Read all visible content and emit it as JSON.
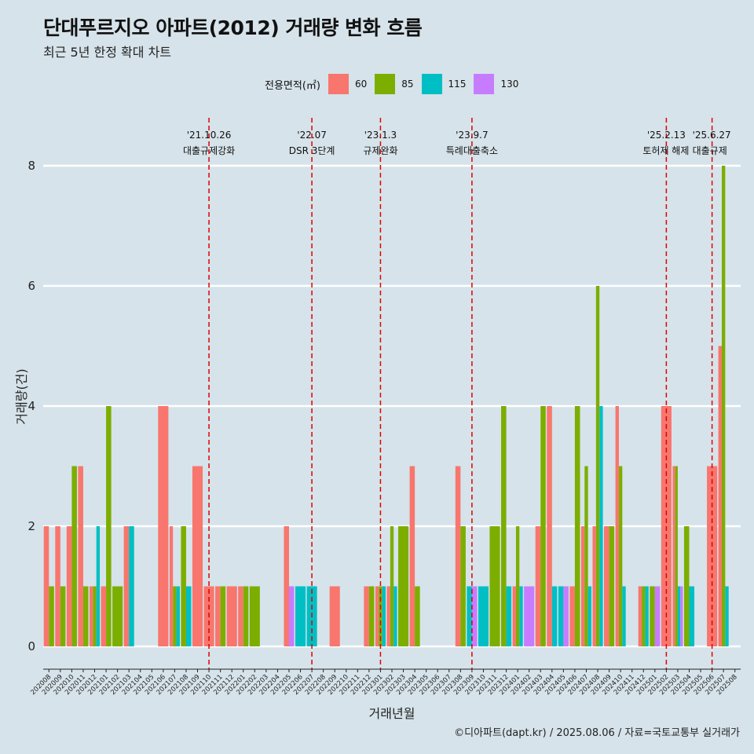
{
  "title": "단대푸르지오 아파트(2012) 거래량 변화 흐름",
  "subtitle": "최근 5년 한정 확대 차트",
  "legend": {
    "title": "전용면적(㎡)",
    "items": [
      {
        "label": "60",
        "color": "#f8766d"
      },
      {
        "label": "85",
        "color": "#7cae00"
      },
      {
        "label": "115",
        "color": "#00bfc4"
      },
      {
        "label": "130",
        "color": "#c77cff"
      }
    ]
  },
  "caption": "©디아파트(dapt.kr) / 2025.08.06 / 자료=국토교통부 실거래가",
  "chart_data": {
    "type": "bar",
    "xlabel": "거래년월",
    "ylabel": "거래량(건)",
    "ylim": [
      0,
      8.5
    ],
    "yticks": [
      0,
      2,
      4,
      6,
      8
    ],
    "grid": true,
    "legend_position": "top",
    "categories": [
      "202008",
      "202009",
      "202010",
      "202011",
      "202012",
      "202101",
      "202102",
      "202103",
      "202104",
      "202105",
      "202106",
      "202107",
      "202108",
      "202109",
      "202110",
      "202111",
      "202112",
      "202201",
      "202202",
      "202203",
      "202204",
      "202205",
      "202206",
      "202207",
      "202208",
      "202209",
      "202210",
      "202211",
      "202212",
      "202301",
      "202302",
      "202303",
      "202304",
      "202305",
      "202306",
      "202307",
      "202308",
      "202309",
      "202310",
      "202311",
      "202312",
      "202401",
      "202402",
      "202403",
      "202404",
      "202405",
      "202406",
      "202407",
      "202408",
      "202409",
      "202410",
      "202411",
      "202412",
      "202501",
      "202502",
      "202503",
      "202504",
      "202505",
      "202506",
      "202507",
      "202508"
    ],
    "series": [
      {
        "name": "60",
        "color": "#f8766d",
        "values": [
          2,
          2,
          2,
          3,
          1,
          1,
          0,
          2,
          0,
          0,
          4,
          2,
          0,
          3,
          1,
          1,
          1,
          1,
          0,
          0,
          0,
          2,
          0,
          0,
          0,
          1,
          0,
          0,
          1,
          1,
          1,
          0,
          3,
          0,
          0,
          0,
          3,
          0,
          0,
          0,
          0,
          1,
          0,
          2,
          4,
          0,
          1,
          2,
          2,
          2,
          4,
          0,
          1,
          0,
          4,
          3,
          0,
          0,
          3,
          5,
          0
        ]
      },
      {
        "name": "85",
        "color": "#7cae00",
        "values": [
          1,
          1,
          3,
          1,
          1,
          4,
          1,
          0,
          0,
          0,
          0,
          1,
          2,
          0,
          0,
          1,
          0,
          1,
          1,
          0,
          0,
          0,
          0,
          0,
          0,
          0,
          0,
          0,
          1,
          1,
          2,
          2,
          1,
          0,
          0,
          0,
          2,
          0,
          0,
          2,
          4,
          2,
          0,
          4,
          0,
          0,
          4,
          3,
          6,
          2,
          3,
          0,
          1,
          1,
          0,
          3,
          2,
          0,
          0,
          8,
          0
        ]
      },
      {
        "name": "115",
        "color": "#00bfc4",
        "values": [
          0,
          0,
          0,
          0,
          2,
          0,
          0,
          2,
          0,
          0,
          0,
          1,
          1,
          0,
          0,
          0,
          0,
          0,
          0,
          0,
          0,
          0,
          1,
          1,
          0,
          0,
          0,
          0,
          0,
          1,
          1,
          0,
          0,
          0,
          0,
          0,
          0,
          1,
          1,
          0,
          1,
          1,
          0,
          0,
          1,
          1,
          0,
          1,
          4,
          0,
          1,
          0,
          1,
          0,
          0,
          1,
          1,
          0,
          0,
          1,
          0
        ]
      },
      {
        "name": "130",
        "color": "#c77cff",
        "values": [
          0,
          0,
          0,
          0,
          0,
          0,
          0,
          0,
          0,
          0,
          0,
          0,
          0,
          0,
          0,
          0,
          0,
          0,
          0,
          0,
          0,
          1,
          0,
          0,
          0,
          0,
          0,
          0,
          0,
          0,
          0,
          0,
          0,
          0,
          0,
          0,
          0,
          1,
          0,
          0,
          0,
          0,
          1,
          0,
          0,
          1,
          0,
          0,
          0,
          0,
          0,
          0,
          0,
          1,
          0,
          1,
          0,
          0,
          0,
          0,
          0
        ]
      }
    ],
    "annotations": [
      {
        "x": "202110",
        "date": "'21.10.26",
        "text": "대출규제강화"
      },
      {
        "x": "202207",
        "date": "'22.07",
        "text": "DSR 3단계"
      },
      {
        "x": "202301",
        "date": "'23.1.3",
        "text": "규제완화"
      },
      {
        "x": "202309",
        "date": "'23.9.7",
        "text": "특례대출축소"
      },
      {
        "x": "202502",
        "date": "'25.2.13",
        "text": "토허제 해제"
      },
      {
        "x": "202506",
        "date": "'25.6.27",
        "text": "대출규제"
      }
    ]
  }
}
